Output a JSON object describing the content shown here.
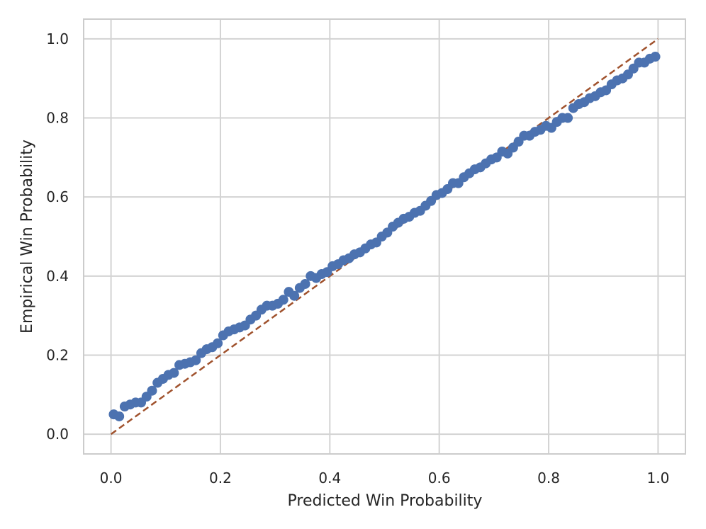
{
  "chart_data": {
    "type": "scatter",
    "title": "",
    "xlabel": "Predicted Win Probability",
    "ylabel": "Empirical Win Probability",
    "xlim": [
      -0.05,
      1.05
    ],
    "ylim": [
      -0.05,
      1.05
    ],
    "x_ticks": [
      0.0,
      0.2,
      0.4,
      0.6,
      0.8,
      1.0
    ],
    "y_ticks": [
      0.0,
      0.2,
      0.4,
      0.6,
      0.8,
      1.0
    ],
    "x_tick_labels": [
      "0.0",
      "0.2",
      "0.4",
      "0.6",
      "0.8",
      "1.0"
    ],
    "y_tick_labels": [
      "0.0",
      "0.2",
      "0.4",
      "0.6",
      "0.8",
      "1.0"
    ],
    "grid": true,
    "legend": "none",
    "colors": {
      "points": "#4c72b0",
      "reference_line": "#a0522d",
      "grid": "#d3d3d3",
      "frame": "#cccccc"
    },
    "series": [
      {
        "type": "scatter",
        "x": [
          0.005,
          0.015,
          0.025,
          0.035,
          0.045,
          0.055,
          0.065,
          0.075,
          0.085,
          0.095,
          0.105,
          0.115,
          0.125,
          0.135,
          0.145,
          0.155,
          0.165,
          0.175,
          0.185,
          0.195,
          0.205,
          0.215,
          0.225,
          0.235,
          0.245,
          0.255,
          0.265,
          0.275,
          0.285,
          0.295,
          0.305,
          0.315,
          0.325,
          0.335,
          0.345,
          0.355,
          0.365,
          0.375,
          0.385,
          0.395,
          0.405,
          0.415,
          0.425,
          0.435,
          0.445,
          0.455,
          0.465,
          0.475,
          0.485,
          0.495,
          0.505,
          0.515,
          0.525,
          0.535,
          0.545,
          0.555,
          0.565,
          0.575,
          0.585,
          0.595,
          0.605,
          0.615,
          0.625,
          0.635,
          0.645,
          0.655,
          0.665,
          0.675,
          0.685,
          0.695,
          0.705,
          0.715,
          0.725,
          0.735,
          0.745,
          0.755,
          0.765,
          0.775,
          0.785,
          0.795,
          0.805,
          0.815,
          0.825,
          0.835,
          0.845,
          0.855,
          0.865,
          0.875,
          0.885,
          0.895,
          0.905,
          0.915,
          0.925,
          0.935,
          0.945,
          0.955,
          0.965,
          0.975,
          0.985,
          0.995
        ],
        "y": [
          0.05,
          0.045,
          0.07,
          0.075,
          0.08,
          0.08,
          0.095,
          0.11,
          0.13,
          0.14,
          0.15,
          0.155,
          0.175,
          0.178,
          0.182,
          0.187,
          0.205,
          0.215,
          0.22,
          0.23,
          0.25,
          0.26,
          0.265,
          0.27,
          0.275,
          0.29,
          0.3,
          0.315,
          0.325,
          0.325,
          0.33,
          0.34,
          0.36,
          0.35,
          0.37,
          0.38,
          0.4,
          0.395,
          0.405,
          0.41,
          0.425,
          0.43,
          0.44,
          0.445,
          0.455,
          0.46,
          0.47,
          0.48,
          0.485,
          0.5,
          0.51,
          0.525,
          0.535,
          0.545,
          0.55,
          0.56,
          0.565,
          0.578,
          0.59,
          0.605,
          0.61,
          0.62,
          0.635,
          0.635,
          0.65,
          0.66,
          0.67,
          0.675,
          0.685,
          0.695,
          0.7,
          0.715,
          0.71,
          0.725,
          0.74,
          0.755,
          0.755,
          0.765,
          0.77,
          0.78,
          0.775,
          0.79,
          0.8,
          0.8,
          0.825,
          0.835,
          0.84,
          0.85,
          0.855,
          0.865,
          0.87,
          0.885,
          0.895,
          0.9,
          0.91,
          0.925,
          0.94,
          0.94,
          0.95,
          0.955
        ]
      },
      {
        "type": "line",
        "style": "dashed",
        "x": [
          0.0,
          1.0
        ],
        "y": [
          0.0,
          1.0
        ]
      }
    ]
  }
}
